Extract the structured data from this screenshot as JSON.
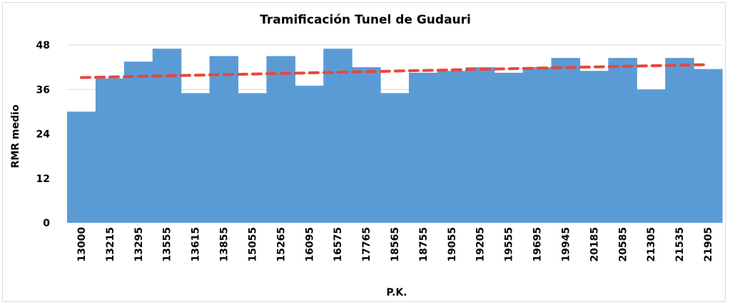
{
  "chart_data": {
    "type": "bar",
    "title": "Tramificación Tunel de Gudauri",
    "xlabel": "P.K.",
    "ylabel": "RMR medio",
    "ylim": [
      0,
      48
    ],
    "yticks": [
      0,
      12,
      24,
      36,
      48
    ],
    "grid": true,
    "categories": [
      "13000",
      "13215",
      "13295",
      "13555",
      "13615",
      "13855",
      "15055",
      "15265",
      "16095",
      "16575",
      "17765",
      "18565",
      "18755",
      "19055",
      "19205",
      "19555",
      "19695",
      "19945",
      "20185",
      "20585",
      "21305",
      "21535",
      "21905"
    ],
    "series": [
      {
        "type": "bar",
        "color": "#5b9bd5",
        "values": [
          30,
          39,
          43.5,
          47,
          35,
          45,
          35,
          45,
          37,
          47,
          42,
          35,
          40.5,
          41,
          42,
          40.5,
          42,
          44.5,
          41,
          44.5,
          36,
          44.5,
          41.5
        ]
      },
      {
        "type": "trendline",
        "style": "dashed",
        "color": "#e8473b",
        "start": 39.2,
        "end": 42.7
      }
    ]
  }
}
